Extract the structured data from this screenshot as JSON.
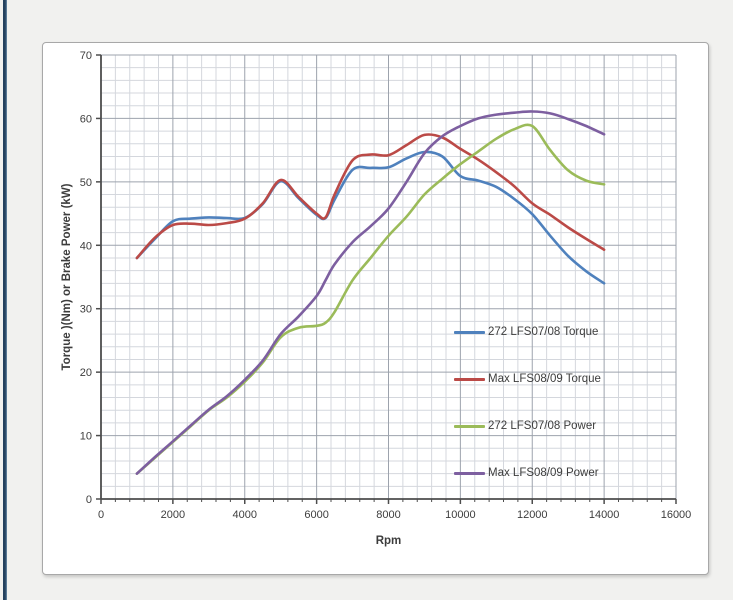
{
  "page": {
    "background_color": "#f1f1ef",
    "left_edge_bar_color": "#24415e"
  },
  "chart_data": {
    "type": "line",
    "title": "",
    "xlabel": "Rpm",
    "ylabel": "Torque )(Nm) or Brake Power (kW)",
    "xlim": [
      0,
      16000
    ],
    "ylim": [
      0,
      70
    ],
    "x_ticks": [
      0,
      2000,
      4000,
      6000,
      8000,
      10000,
      12000,
      14000,
      16000
    ],
    "y_ticks": [
      0,
      10,
      20,
      30,
      40,
      50,
      60,
      70
    ],
    "x_minor_step": 400,
    "y_minor_step": 2,
    "grid": "major and minor, both axes",
    "legend_position": "inside plot, center-right, no border",
    "x": [
      1000,
      1500,
      2000,
      2500,
      3000,
      3500,
      4000,
      4500,
      5000,
      5500,
      6000,
      6250,
      6500,
      7000,
      7500,
      8000,
      8500,
      9000,
      9500,
      10000,
      10500,
      11000,
      11500,
      12000,
      12500,
      13000,
      13500,
      14000
    ],
    "series": [
      {
        "name": "272 LFS07/08 Torque",
        "color": "#4f81bd",
        "values": [
          38,
          41.0,
          43.8,
          44.2,
          44.4,
          44.3,
          44.3,
          46.5,
          50.1,
          47.4,
          44.8,
          44.3,
          47.2,
          51.9,
          52.2,
          52.3,
          53.7,
          54.7,
          54.0,
          50.9,
          50.2,
          49.2,
          47.3,
          44.9,
          41.5,
          38.3,
          35.9,
          34.0
        ]
      },
      {
        "name": "Max LFS08/09 Torque",
        "color": "#bb4a47",
        "values": [
          38,
          41.2,
          43.2,
          43.4,
          43.2,
          43.5,
          44.2,
          46.6,
          50.3,
          47.6,
          45.0,
          44.4,
          48.0,
          53.4,
          54.3,
          54.2,
          55.8,
          57.4,
          57.0,
          55.2,
          53.5,
          51.5,
          49.3,
          46.6,
          44.8,
          42.8,
          41.0,
          39.3
        ]
      },
      {
        "name": "272 LFS07/08 Power",
        "color": "#9bbb59",
        "values": [
          4,
          6.5,
          9.0,
          11.5,
          14.0,
          16.0,
          18.5,
          21.5,
          25.5,
          27.0,
          27.3,
          27.8,
          29.5,
          34.5,
          38.0,
          41.5,
          44.5,
          48.0,
          50.5,
          52.8,
          54.8,
          56.8,
          58.3,
          58.8,
          55.0,
          51.8,
          50.2,
          49.6
        ]
      },
      {
        "name": "Max LFS08/09 Power",
        "color": "#7d5fa0",
        "values": [
          4,
          6.6,
          9.1,
          11.6,
          14.1,
          16.2,
          18.8,
          21.8,
          26.0,
          28.8,
          32.0,
          34.5,
          37.0,
          40.5,
          43.0,
          45.8,
          50.0,
          54.5,
          57.2,
          58.8,
          60.0,
          60.6,
          60.9,
          61.1,
          60.8,
          59.9,
          58.8,
          57.5
        ]
      }
    ],
    "style": {
      "minor_grid_color": "#d4d7dd",
      "major_grid_color": "#9da3ad",
      "axis_color": "#4d4d4d",
      "label_color": "#3d3d3d",
      "plot_background": "#ffffff"
    }
  }
}
